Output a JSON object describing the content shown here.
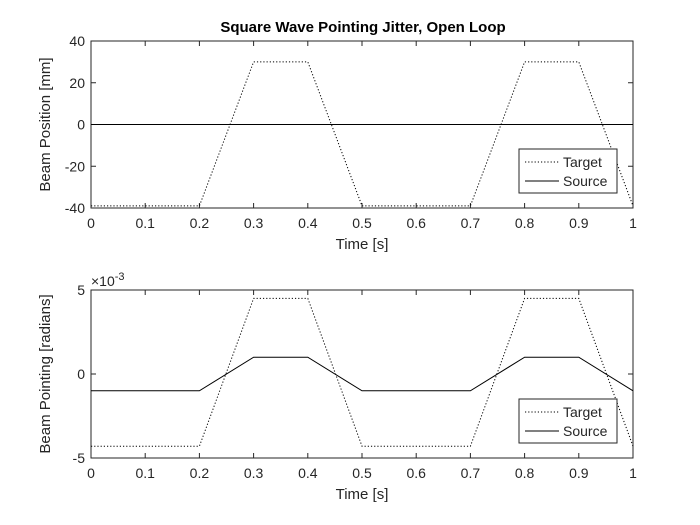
{
  "chart_data": [
    {
      "type": "line",
      "title": "Square Wave Pointing Jitter, Open Loop",
      "xlabel": "Time [s]",
      "ylabel": "Beam Position [mm]",
      "xlim": [
        0,
        1
      ],
      "ylim": [
        -40,
        40
      ],
      "xticks": [
        "0",
        "0.1",
        "0.2",
        "0.3",
        "0.4",
        "0.5",
        "0.6",
        "0.7",
        "0.8",
        "0.9",
        "1"
      ],
      "yticks": [
        "-40",
        "-20",
        "0",
        "20",
        "40"
      ],
      "exponent_label": "",
      "grid": false,
      "legend": "bottom-right",
      "series": [
        {
          "name": "Target",
          "style": "dotted",
          "color": "#000000",
          "x": [
            0,
            0.2,
            0.3,
            0.4,
            0.5,
            0.7,
            0.8,
            0.9,
            1.0
          ],
          "y": [
            -39,
            -39,
            30,
            30,
            -39,
            -39,
            30,
            30,
            -39
          ]
        },
        {
          "name": "Source",
          "style": "solid",
          "color": "#000000",
          "x": [
            0,
            1.0
          ],
          "y": [
            0,
            0
          ]
        }
      ]
    },
    {
      "type": "line",
      "title": "",
      "xlabel": "Time [s]",
      "ylabel": "Beam Pointing [radians]",
      "xlim": [
        0,
        1
      ],
      "ylim": [
        -5,
        5
      ],
      "xticks": [
        "0",
        "0.1",
        "0.2",
        "0.3",
        "0.4",
        "0.5",
        "0.6",
        "0.7",
        "0.8",
        "0.9",
        "1"
      ],
      "yticks": [
        "-5",
        "0",
        "5"
      ],
      "exponent_label": "×10",
      "exponent_power": "-3",
      "grid": false,
      "legend": "bottom-right",
      "series": [
        {
          "name": "Target",
          "style": "dotted",
          "color": "#000000",
          "x": [
            0,
            0.2,
            0.3,
            0.4,
            0.5,
            0.7,
            0.8,
            0.9,
            1.0
          ],
          "y": [
            -4.3,
            -4.3,
            4.5,
            4.5,
            -4.3,
            -4.3,
            4.5,
            4.5,
            -4.3
          ]
        },
        {
          "name": "Source",
          "style": "solid",
          "color": "#000000",
          "x": [
            0,
            0.2,
            0.3,
            0.4,
            0.5,
            0.7,
            0.8,
            0.9,
            1.0
          ],
          "y": [
            -1.0,
            -1.0,
            1.0,
            1.0,
            -1.0,
            -1.0,
            1.0,
            1.0,
            -1.0
          ]
        }
      ]
    }
  ]
}
